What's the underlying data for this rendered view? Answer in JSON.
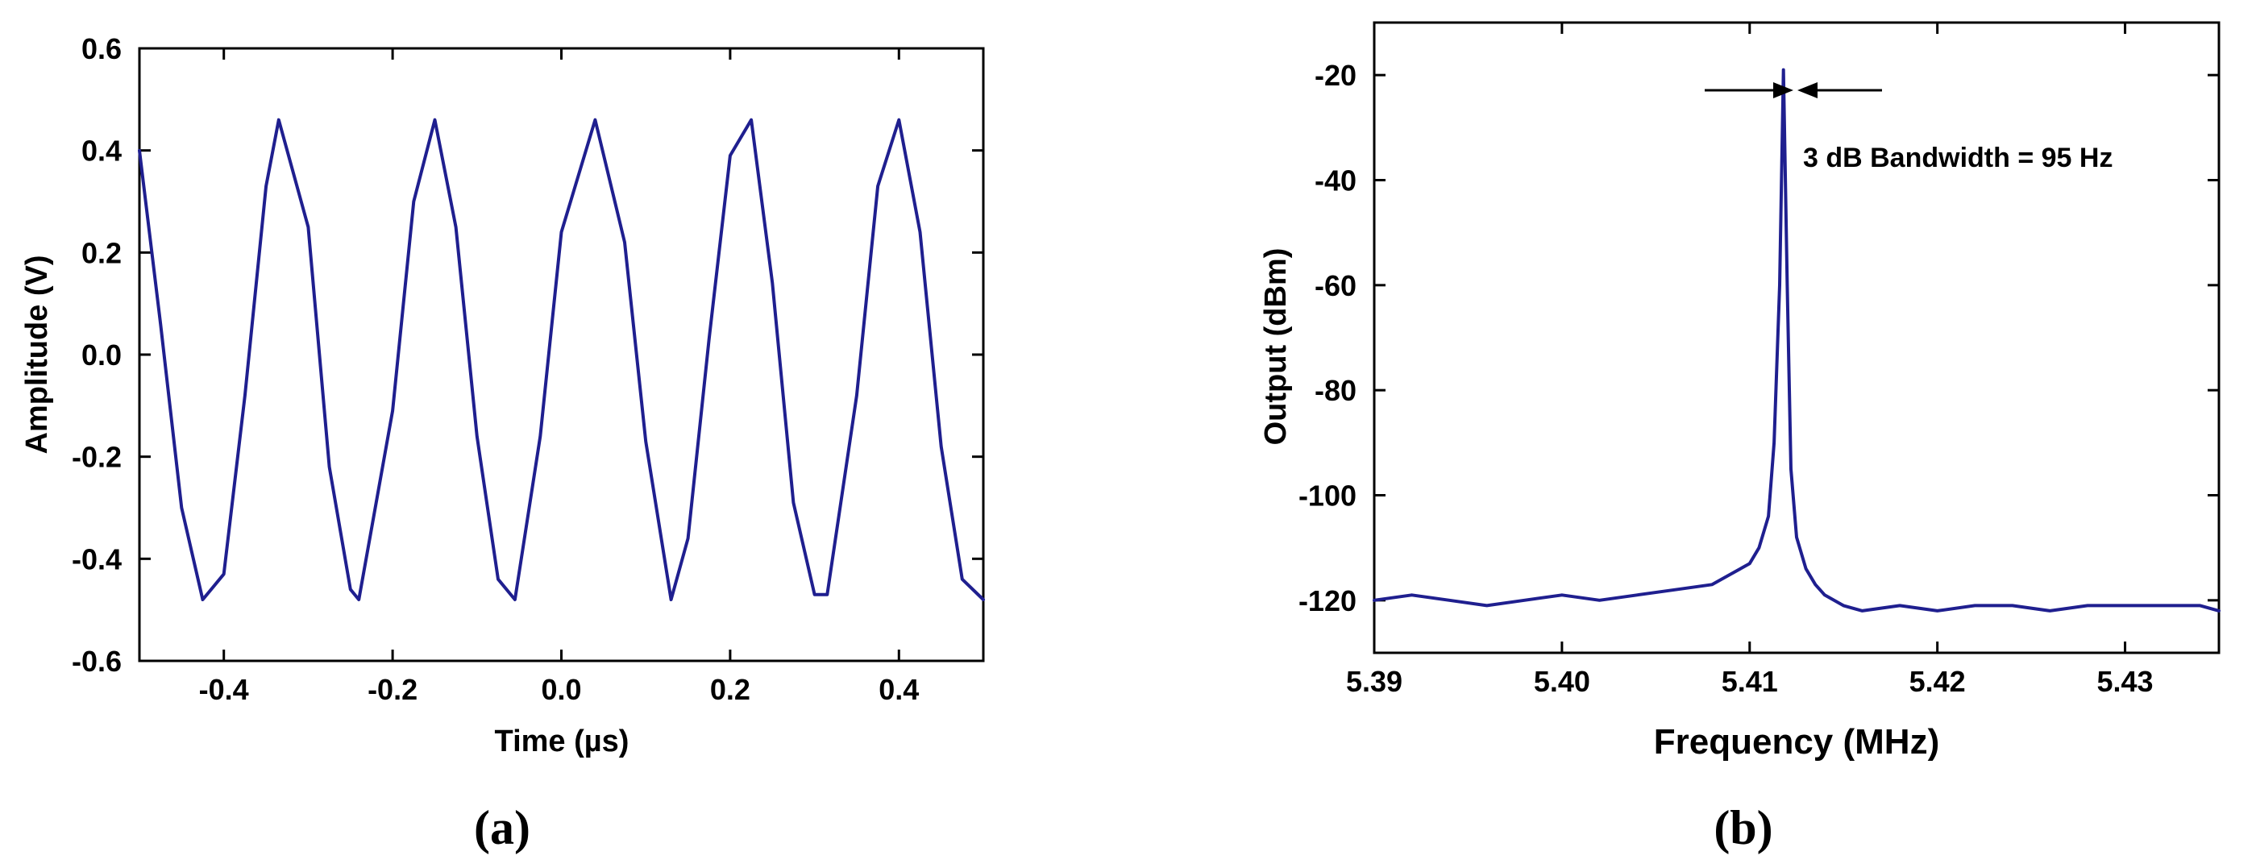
{
  "colors": {
    "series": "#1f1f8f",
    "axis": "#000000"
  },
  "chart_data": [
    {
      "type": "line",
      "panel_label": "(a)",
      "title": "",
      "xlabel": "Time (µs)",
      "ylabel": "Amplitude (V)",
      "xlim": [
        -0.5,
        0.5
      ],
      "ylim": [
        -0.6,
        0.6
      ],
      "x_ticks": [
        "-0.4",
        "-0.2",
        "0.0",
        "0.2",
        "0.4"
      ],
      "y_ticks": [
        "0.6",
        "0.4",
        "0.2",
        "0.0",
        "-0.2",
        "-0.4",
        "-0.6"
      ],
      "grid": false,
      "series": [
        {
          "x": [
            -0.5,
            -0.475,
            -0.45,
            -0.425,
            -0.4,
            -0.375,
            -0.35,
            -0.335,
            -0.3,
            -0.275,
            -0.25,
            -0.24,
            -0.2,
            -0.175,
            -0.15,
            -0.125,
            -0.1,
            -0.075,
            -0.055,
            -0.025,
            0.0,
            0.04,
            0.075,
            0.1,
            0.13,
            0.15,
            0.175,
            0.2,
            0.225,
            0.25,
            0.275,
            0.3,
            0.315,
            0.35,
            0.375,
            0.4,
            0.425,
            0.45,
            0.475,
            0.5
          ],
          "y": [
            0.4,
            0.06,
            -0.3,
            -0.48,
            -0.43,
            -0.08,
            0.33,
            0.46,
            0.25,
            -0.22,
            -0.46,
            -0.48,
            -0.11,
            0.3,
            0.46,
            0.25,
            -0.16,
            -0.44,
            -0.48,
            -0.16,
            0.24,
            0.46,
            0.22,
            -0.17,
            -0.48,
            -0.36,
            0.03,
            0.39,
            0.46,
            0.14,
            -0.29,
            -0.47,
            -0.47,
            -0.08,
            0.33,
            0.46,
            0.24,
            -0.18,
            -0.44,
            -0.48
          ]
        }
      ]
    },
    {
      "type": "line",
      "panel_label": "(b)",
      "title": "",
      "xlabel": "Frequency (MHz)",
      "ylabel": "Output (dBm)",
      "xlim": [
        5.39,
        5.435
      ],
      "ylim": [
        -130,
        -10
      ],
      "x_ticks": [
        "5.39",
        "5.40",
        "5.41",
        "5.42",
        "5.43"
      ],
      "y_ticks": [
        "-20",
        "-40",
        "-60",
        "-80",
        "-100",
        "-120"
      ],
      "grid": false,
      "annotation": "3 dB Bandwidth = 95 Hz",
      "series": [
        {
          "x": [
            5.39,
            5.392,
            5.394,
            5.396,
            5.398,
            5.4,
            5.402,
            5.404,
            5.406,
            5.408,
            5.409,
            5.41,
            5.4105,
            5.411,
            5.4113,
            5.4116,
            5.4118,
            5.412,
            5.4122,
            5.4125,
            5.413,
            5.4135,
            5.414,
            5.415,
            5.416,
            5.418,
            5.42,
            5.422,
            5.424,
            5.426,
            5.428,
            5.43,
            5.432,
            5.434,
            5.435
          ],
          "y": [
            -120,
            -119,
            -120,
            -121,
            -120,
            -119,
            -120,
            -119,
            -118,
            -117,
            -115,
            -113,
            -110,
            -104,
            -90,
            -60,
            -19,
            -60,
            -95,
            -108,
            -114,
            -117,
            -119,
            -121,
            -122,
            -121,
            -122,
            -121,
            -121,
            -122,
            -121,
            -121,
            -121,
            -121,
            -122
          ]
        }
      ]
    }
  ]
}
